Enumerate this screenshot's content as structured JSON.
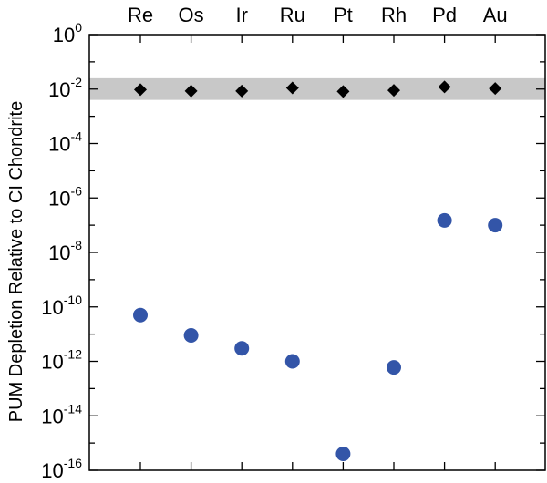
{
  "chart_data": {
    "type": "scatter",
    "title": "",
    "xlabel": "",
    "ylabel": "PUM Depletion Relative to CI Chondrite",
    "y_scale": "log",
    "ylim": [
      1e-16,
      1
    ],
    "categories": [
      "Re",
      "Os",
      "Ir",
      "Ru",
      "Pt",
      "Rh",
      "Pd",
      "Au"
    ],
    "y_ticks": [
      {
        "base": "10",
        "exp": "0",
        "value": 1
      },
      {
        "base": "10",
        "exp": "-2",
        "value": 0.01
      },
      {
        "base": "10",
        "exp": "-4",
        "value": 0.0001
      },
      {
        "base": "10",
        "exp": "-6",
        "value": 1e-06
      },
      {
        "base": "10",
        "exp": "-8",
        "value": 1e-08
      },
      {
        "base": "10",
        "exp": "-10",
        "value": 1e-10
      },
      {
        "base": "10",
        "exp": "-12",
        "value": 1e-12
      },
      {
        "base": "10",
        "exp": "-14",
        "value": 1e-14
      },
      {
        "base": "10",
        "exp": "-16",
        "value": 1e-16
      }
    ],
    "shaded_band": {
      "y_min": 0.004,
      "y_max": 0.025,
      "color": "#c8c8c8"
    },
    "series": [
      {
        "marker": "diamond",
        "color": "#000000",
        "values": [
          0.0095,
          0.0085,
          0.0085,
          0.011,
          0.0082,
          0.009,
          0.012,
          0.0105
        ]
      },
      {
        "marker": "circle",
        "color": "#3355a8",
        "values": [
          5e-11,
          9e-12,
          3e-12,
          1e-12,
          4e-16,
          6e-13,
          1.5e-07,
          1e-07
        ]
      }
    ],
    "grid": false
  }
}
